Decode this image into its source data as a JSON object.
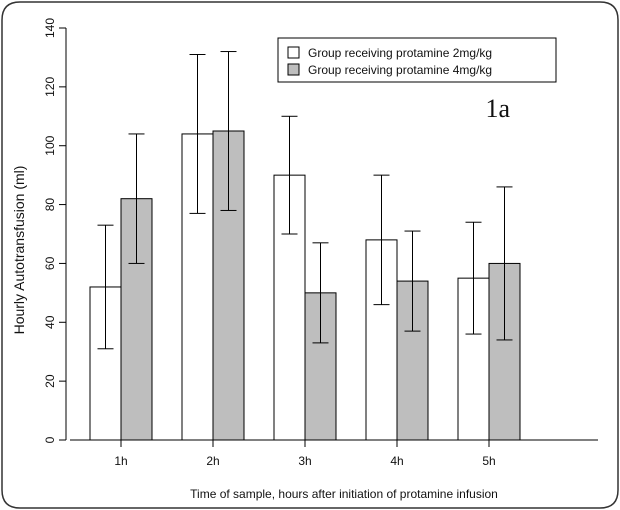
{
  "chart_data": {
    "type": "bar",
    "categories": [
      "1h",
      "2h",
      "3h",
      "4h",
      "5h"
    ],
    "series": [
      {
        "name": "Group receiving protamine 2mg/kg",
        "color": "#ffffff",
        "values": [
          52,
          104,
          90,
          68,
          55
        ],
        "error_low": [
          31,
          77,
          70,
          46,
          36
        ],
        "error_high": [
          73,
          131,
          110,
          90,
          74
        ]
      },
      {
        "name": "Group receiving protamine 4mg/kg",
        "color": "#bebebe",
        "values": [
          82,
          105,
          50,
          54,
          60
        ],
        "error_low": [
          60,
          78,
          33,
          37,
          34
        ],
        "error_high": [
          104,
          132,
          67,
          71,
          86
        ]
      }
    ],
    "title": "",
    "panel_label": "1a",
    "xlabel": "Time of sample, hours after initiation of protamine infusion",
    "ylabel": "Hourly Autotransfusion (ml)",
    "ylim": [
      0,
      140
    ],
    "yticks": [
      "0",
      "20",
      "40",
      "60",
      "80",
      "100",
      "120",
      "140"
    ],
    "grid": false,
    "legend_position": "top-right"
  }
}
